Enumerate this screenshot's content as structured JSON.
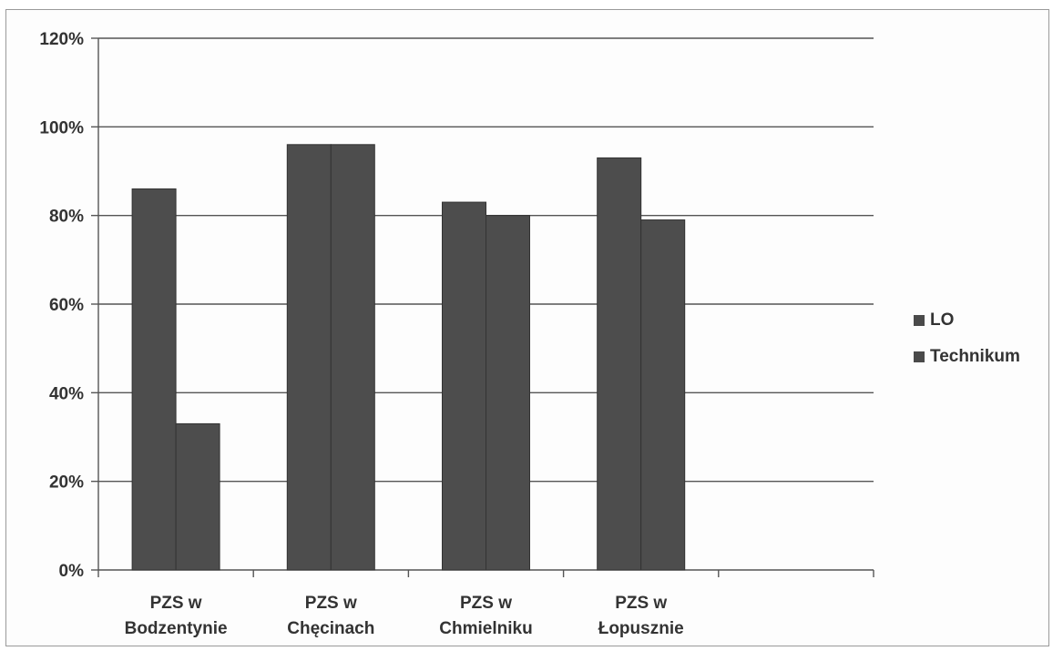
{
  "chart_data": {
    "type": "bar",
    "title": "",
    "xlabel": "",
    "ylabel": "",
    "categories": [
      [
        "PZS w",
        "Bodzentynie"
      ],
      [
        "PZS w",
        "Chęcinach"
      ],
      [
        "PZS w",
        "Chmielniku"
      ],
      [
        "PZS w",
        "Łopusznie"
      ]
    ],
    "series": [
      {
        "name": "LO",
        "values": [
          86,
          96,
          83,
          93
        ],
        "color": "#4d4d4d"
      },
      {
        "name": "Technikum",
        "values": [
          33,
          96,
          80,
          79
        ],
        "color": "#4d4d4d"
      }
    ],
    "ylim": [
      0,
      120
    ],
    "yticks": [
      0,
      20,
      40,
      60,
      80,
      100,
      120
    ],
    "ytick_labels": [
      "0%",
      "20%",
      "40%",
      "60%",
      "80%",
      "100%",
      "120%"
    ],
    "legend_position": "right",
    "grid": true
  }
}
